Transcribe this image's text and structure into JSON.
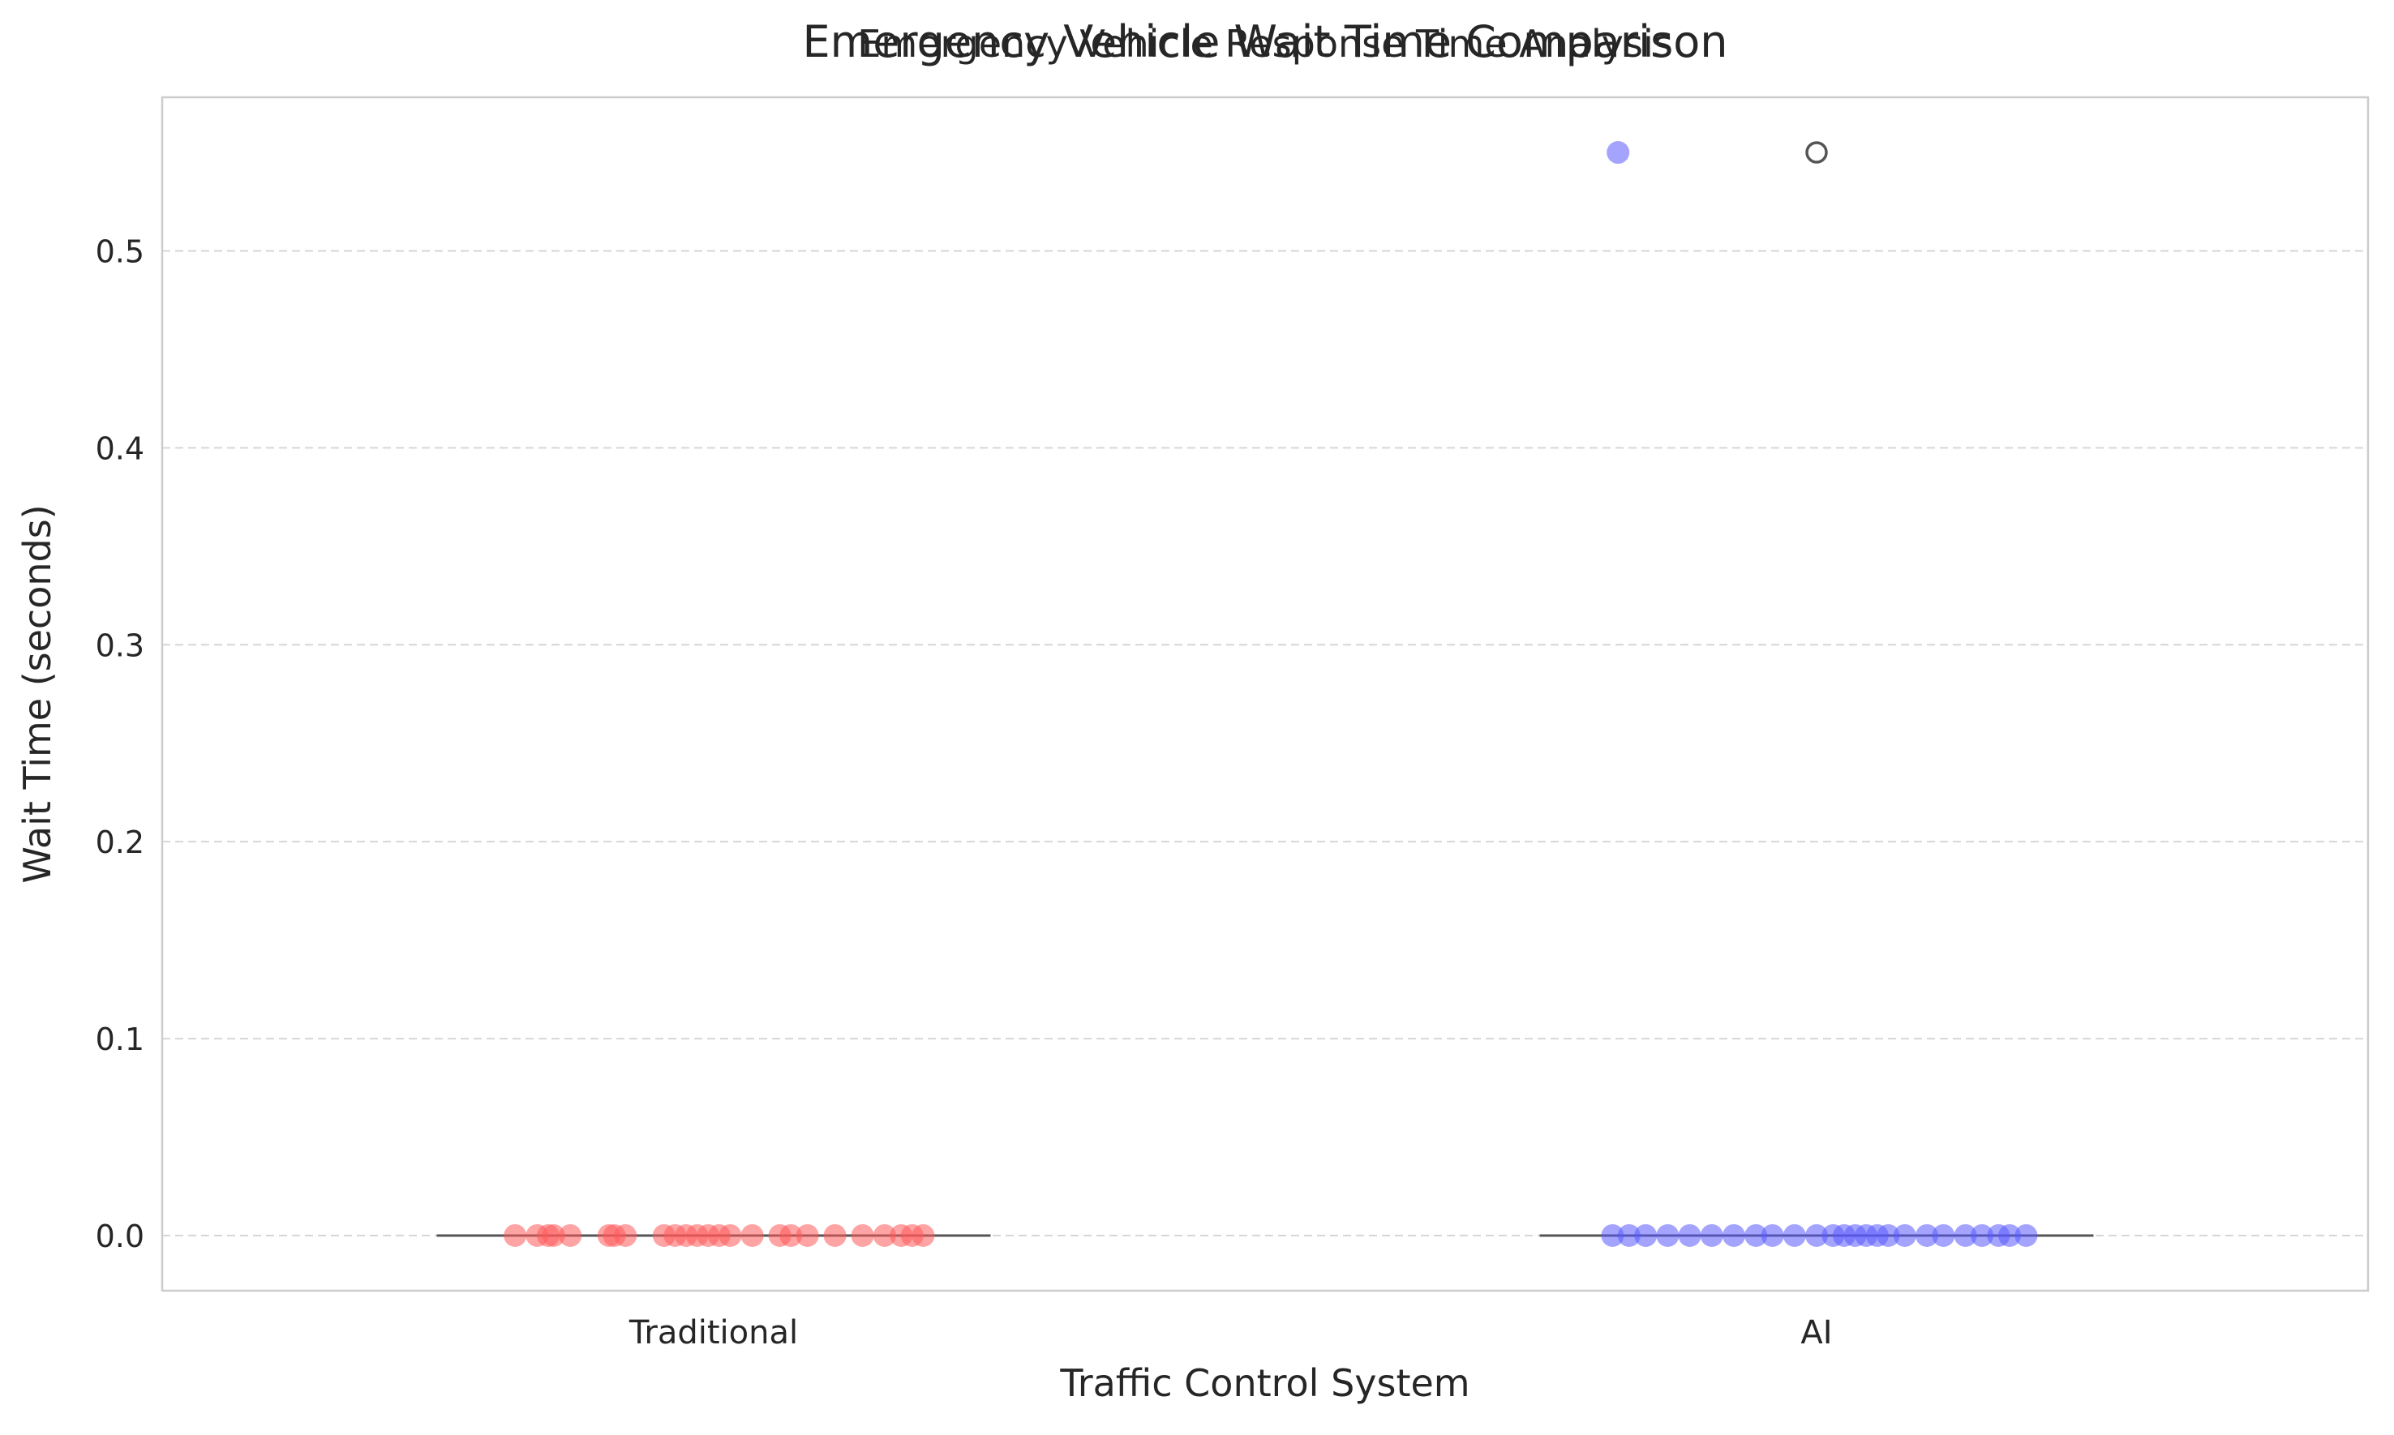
{
  "chart_data": {
    "type": "box",
    "suptitle": "Emergency Vehicle Response Time Analysis",
    "title": "Emergency Vehicle Wait Time Comparison",
    "xlabel": "Traffic Control System",
    "ylabel": "Wait Time (seconds)",
    "categories": [
      "Traditional",
      "AI"
    ],
    "ylim": [
      -0.028,
      0.578
    ],
    "yticks": [
      0.0,
      0.1,
      0.2,
      0.3,
      0.4,
      0.5
    ],
    "grid": "y-dashed",
    "colors": {
      "Traditional": "#ff5a5a",
      "AI": "#5a5aff",
      "box_line": "#555555",
      "grid": "#d6d6d6",
      "frame": "#cccccc"
    },
    "series": [
      {
        "category": "Traditional",
        "box": {
          "q1": 0.0,
          "median": 0.0,
          "q3": 0.0,
          "whisker_low": 0.0,
          "whisker_high": 0.0
        },
        "fliers": [],
        "points": [
          {
            "jitter": -0.18,
            "y": 0.0
          },
          {
            "jitter": -0.16,
            "y": 0.0
          },
          {
            "jitter": -0.15,
            "y": 0.0
          },
          {
            "jitter": -0.145,
            "y": 0.0
          },
          {
            "jitter": -0.13,
            "y": 0.0
          },
          {
            "jitter": -0.095,
            "y": 0.0
          },
          {
            "jitter": -0.09,
            "y": 0.0
          },
          {
            "jitter": -0.08,
            "y": 0.0
          },
          {
            "jitter": -0.045,
            "y": 0.0
          },
          {
            "jitter": -0.035,
            "y": 0.0
          },
          {
            "jitter": -0.025,
            "y": 0.0
          },
          {
            "jitter": -0.015,
            "y": 0.0
          },
          {
            "jitter": -0.005,
            "y": 0.0
          },
          {
            "jitter": 0.005,
            "y": 0.0
          },
          {
            "jitter": 0.015,
            "y": 0.0
          },
          {
            "jitter": 0.035,
            "y": 0.0
          },
          {
            "jitter": 0.06,
            "y": 0.0
          },
          {
            "jitter": 0.07,
            "y": 0.0
          },
          {
            "jitter": 0.085,
            "y": 0.0
          },
          {
            "jitter": 0.11,
            "y": 0.0
          },
          {
            "jitter": 0.135,
            "y": 0.0
          },
          {
            "jitter": 0.155,
            "y": 0.0
          },
          {
            "jitter": 0.17,
            "y": 0.0
          },
          {
            "jitter": 0.18,
            "y": 0.0
          },
          {
            "jitter": 0.19,
            "y": 0.0
          }
        ]
      },
      {
        "category": "AI",
        "box": {
          "q1": 0.0,
          "median": 0.0,
          "q3": 0.0,
          "whisker_low": 0.0,
          "whisker_high": 0.0
        },
        "fliers": [
          0.55
        ],
        "points": [
          {
            "jitter": -0.18,
            "y": 0.55
          },
          {
            "jitter": -0.185,
            "y": 0.0
          },
          {
            "jitter": -0.17,
            "y": 0.0
          },
          {
            "jitter": -0.155,
            "y": 0.0
          },
          {
            "jitter": -0.135,
            "y": 0.0
          },
          {
            "jitter": -0.115,
            "y": 0.0
          },
          {
            "jitter": -0.095,
            "y": 0.0
          },
          {
            "jitter": -0.075,
            "y": 0.0
          },
          {
            "jitter": -0.055,
            "y": 0.0
          },
          {
            "jitter": -0.04,
            "y": 0.0
          },
          {
            "jitter": -0.02,
            "y": 0.0
          },
          {
            "jitter": 0.0,
            "y": 0.0
          },
          {
            "jitter": 0.015,
            "y": 0.0
          },
          {
            "jitter": 0.025,
            "y": 0.0
          },
          {
            "jitter": 0.035,
            "y": 0.0
          },
          {
            "jitter": 0.045,
            "y": 0.0
          },
          {
            "jitter": 0.055,
            "y": 0.0
          },
          {
            "jitter": 0.065,
            "y": 0.0
          },
          {
            "jitter": 0.08,
            "y": 0.0
          },
          {
            "jitter": 0.1,
            "y": 0.0
          },
          {
            "jitter": 0.115,
            "y": 0.0
          },
          {
            "jitter": 0.135,
            "y": 0.0
          },
          {
            "jitter": 0.15,
            "y": 0.0
          },
          {
            "jitter": 0.165,
            "y": 0.0
          },
          {
            "jitter": 0.175,
            "y": 0.0
          },
          {
            "jitter": 0.19,
            "y": 0.0
          }
        ]
      }
    ]
  }
}
